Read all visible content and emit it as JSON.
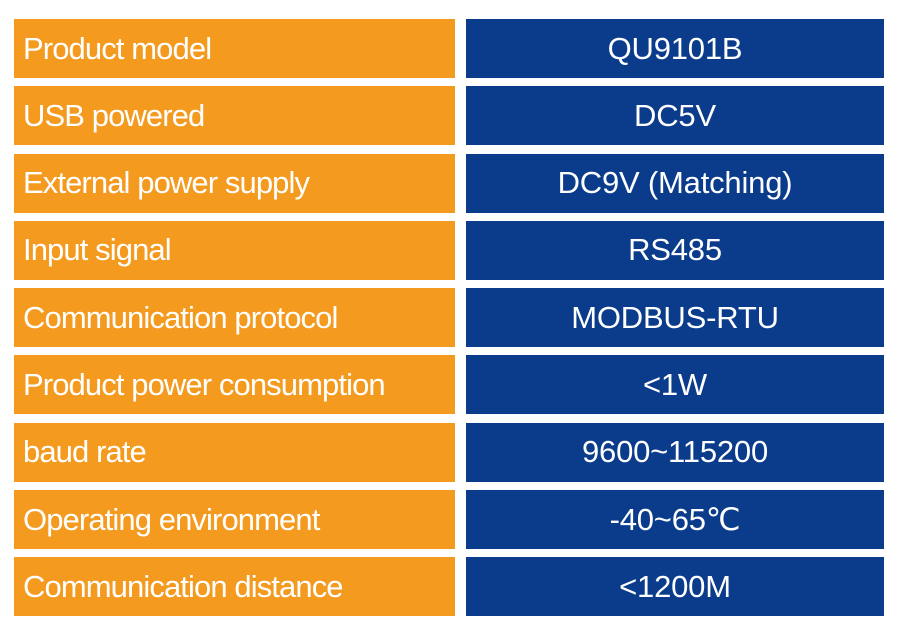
{
  "specs": [
    {
      "label": "Product model",
      "value": "QU9101B"
    },
    {
      "label": "USB powered",
      "value": "DC5V"
    },
    {
      "label": "External power supply",
      "value": "DC9V (Matching)"
    },
    {
      "label": "Input signal",
      "value": "RS485"
    },
    {
      "label": "Communication protocol",
      "value": "MODBUS-RTU"
    },
    {
      "label": "Product power consumption",
      "value": "<1W"
    },
    {
      "label": "baud rate",
      "value": "9600~115200"
    },
    {
      "label": "Operating environment",
      "value": "-40~65℃"
    },
    {
      "label": "Communication distance",
      "value": "<1200M"
    }
  ],
  "colors": {
    "label_bg": "#f39a1f",
    "value_bg": "#0b3c8c",
    "text": "#ffffff"
  }
}
